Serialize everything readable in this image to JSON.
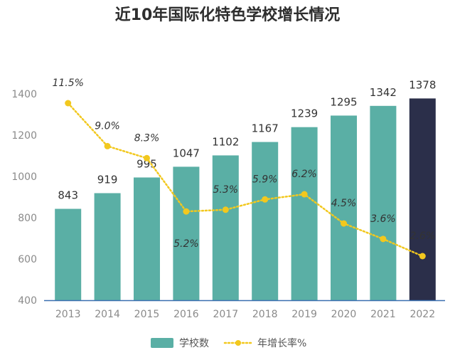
{
  "chart_data": {
    "type": "bar",
    "title": "近10年国际化特色学校增长情况",
    "categories": [
      "2013",
      "2014",
      "2015",
      "2016",
      "2017",
      "2018",
      "2019",
      "2020",
      "2021",
      "2022"
    ],
    "series": [
      {
        "name": "学校数",
        "type": "bar",
        "values": [
          843,
          919,
          995,
          1047,
          1102,
          1167,
          1239,
          1295,
          1342,
          1378
        ],
        "value_labels": [
          "843",
          "919",
          "995",
          "1047",
          "1102",
          "1167",
          "1239",
          "1295",
          "1342",
          "1378"
        ],
        "color": "#5aafa5",
        "highlight_color": "#2b2f4a",
        "highlight_index": 9
      },
      {
        "name": "年增长率%",
        "type": "line",
        "style": "dotted",
        "values": [
          11.5,
          9.0,
          8.3,
          5.2,
          5.3,
          5.9,
          6.2,
          4.5,
          3.6,
          2.6
        ],
        "value_labels": [
          "11.5%",
          "9.0%",
          "8.3%",
          "5.2%",
          "5.3%",
          "5.9%",
          "6.2%",
          "4.5%",
          "3.6%",
          "2.6%"
        ],
        "color": "#f2c81e"
      }
    ],
    "y_ticks": [
      "400",
      "600",
      "800",
      "1000",
      "1200",
      "1400"
    ],
    "ylim": [
      400,
      1400
    ],
    "grid": false,
    "legend_position": "bottom"
  }
}
